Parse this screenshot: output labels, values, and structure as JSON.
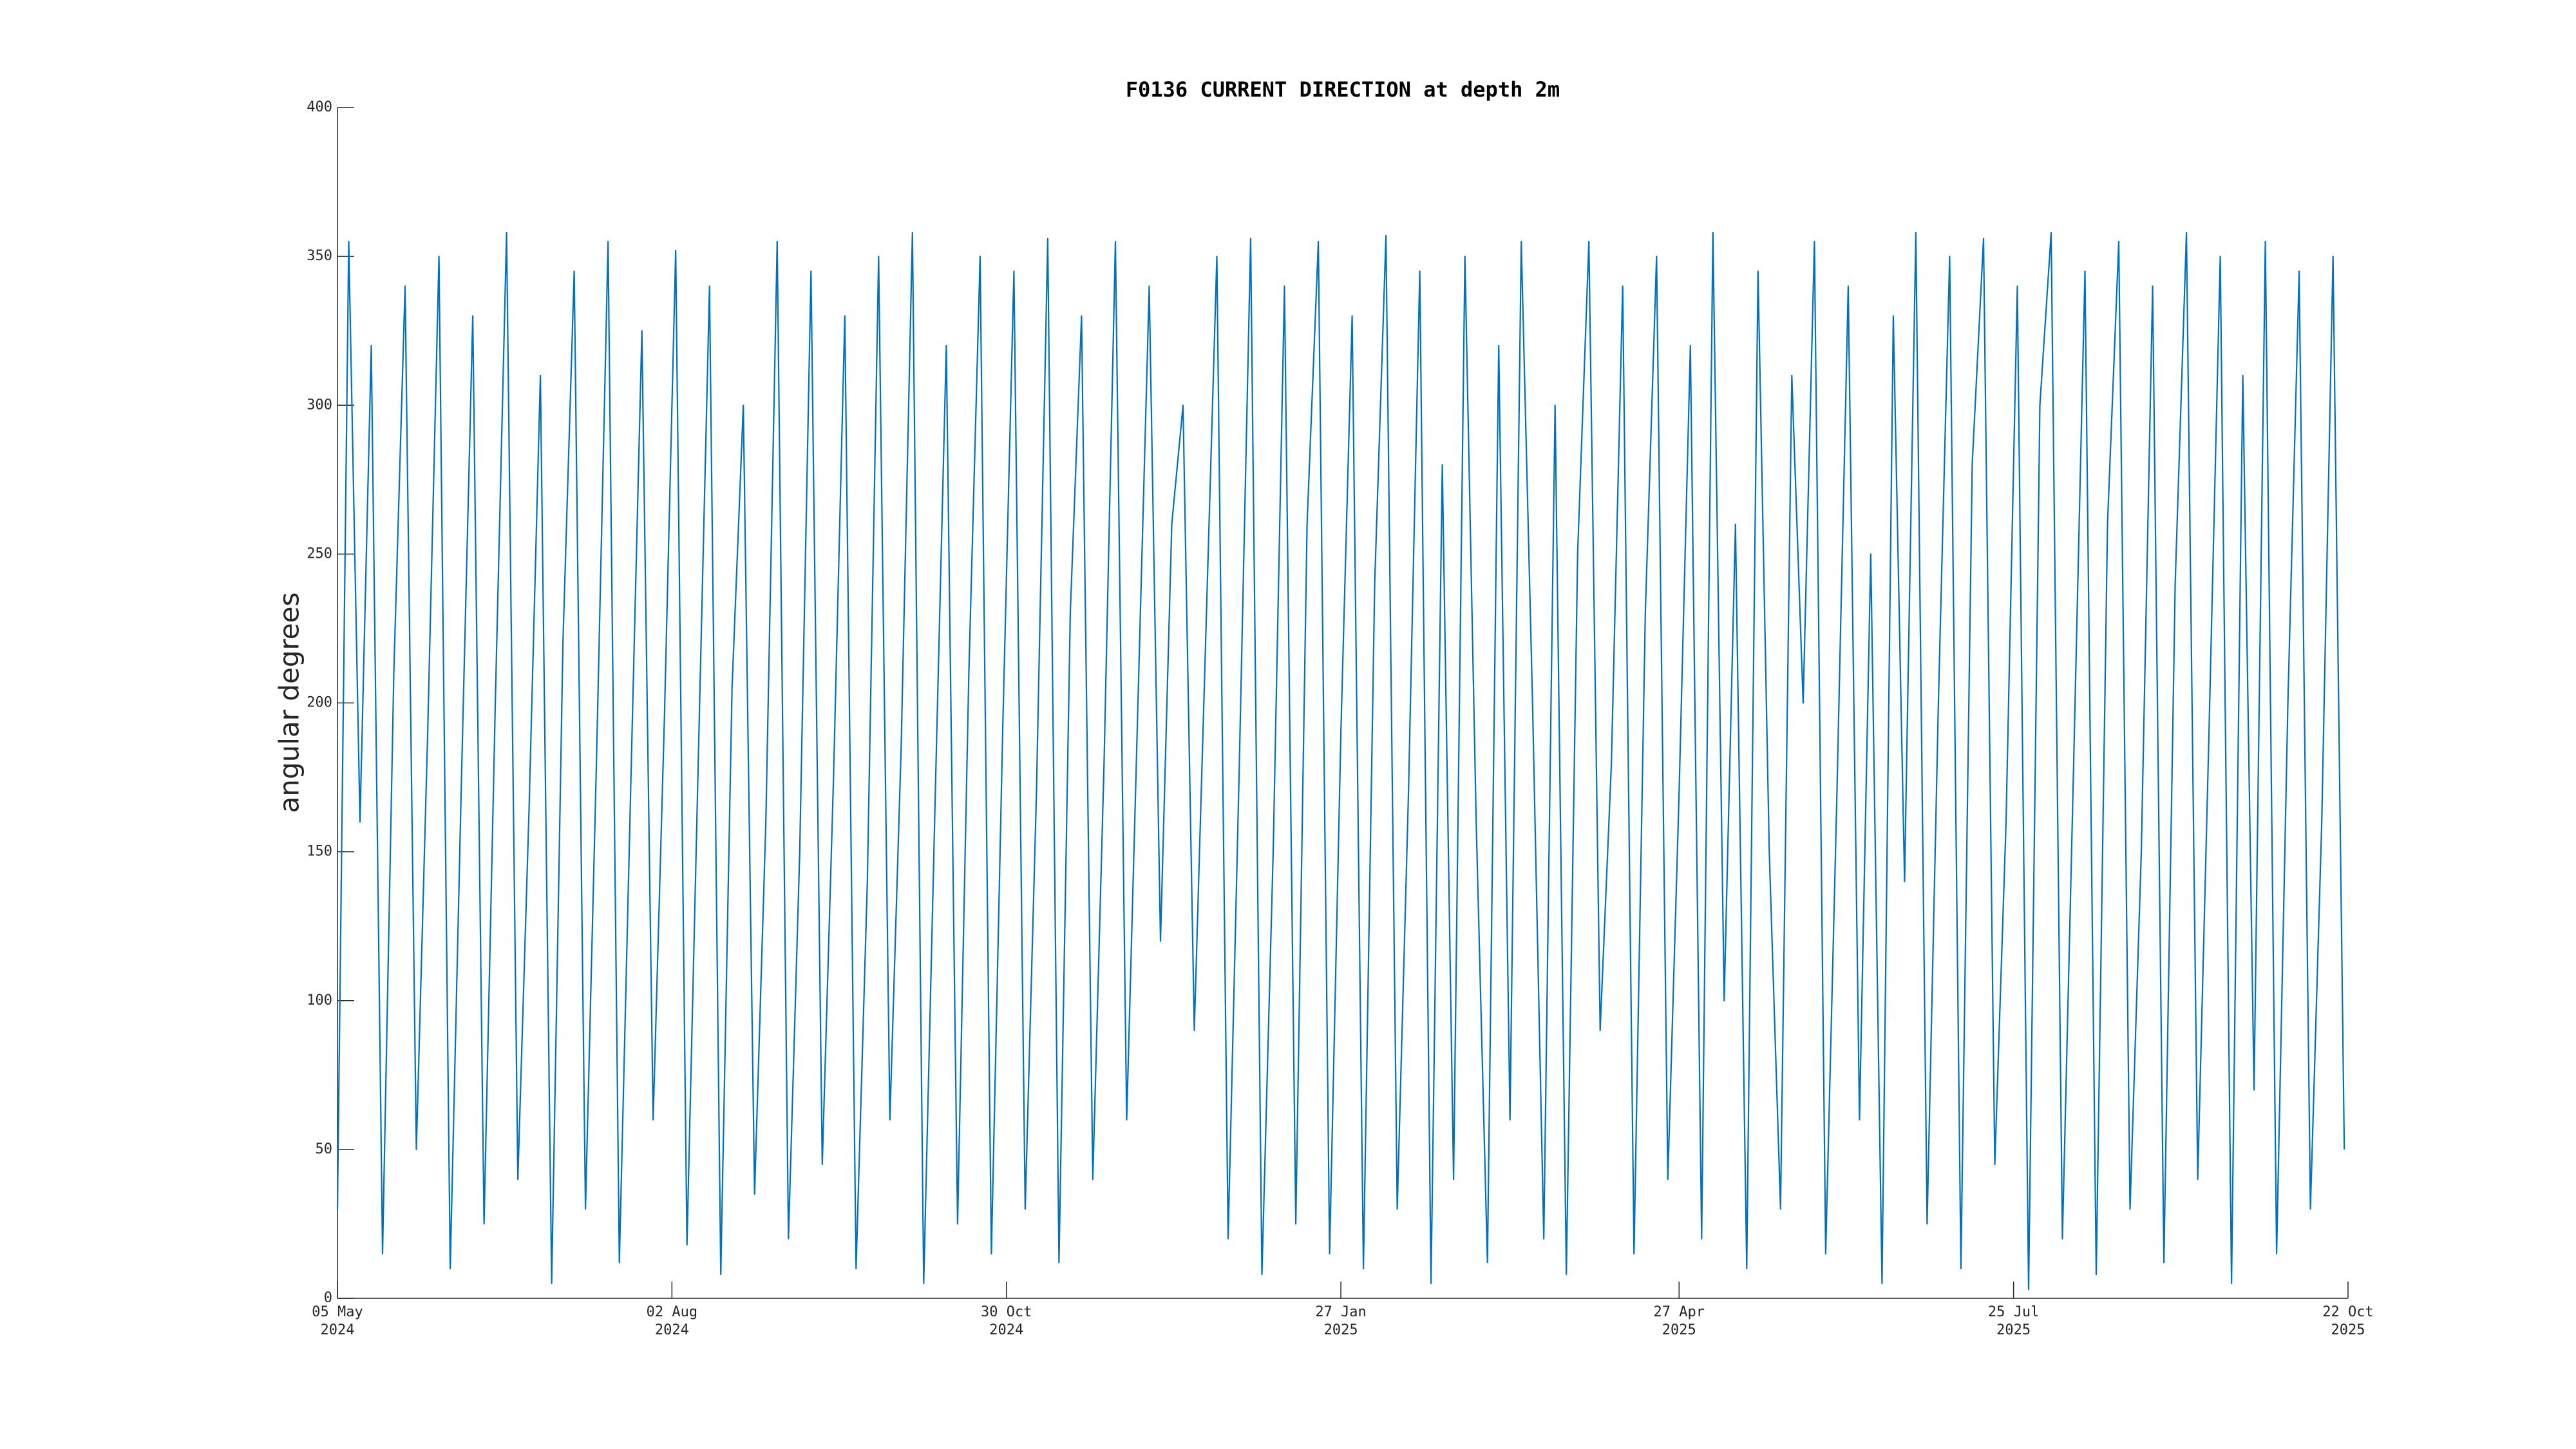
{
  "chart_data": {
    "type": "line",
    "title": "F0136 CURRENT DIRECTION at depth 2m",
    "y_label": "angular degrees",
    "color": "#0072BD",
    "x": [
      "2024-05-05",
      "2024-05-08",
      "2024-05-11",
      "2024-05-14",
      "2024-05-17",
      "2024-05-20",
      "2024-05-23",
      "2024-05-26",
      "2024-05-29",
      "2024-06-01",
      "2024-06-04",
      "2024-06-07",
      "2024-06-10",
      "2024-06-13",
      "2024-06-16",
      "2024-06-19",
      "2024-06-22",
      "2024-06-25",
      "2024-06-28",
      "2024-07-01",
      "2024-07-04",
      "2024-07-07",
      "2024-07-10",
      "2024-07-13",
      "2024-07-16",
      "2024-07-19",
      "2024-07-22",
      "2024-07-25",
      "2024-07-28",
      "2024-07-31",
      "2024-08-03",
      "2024-08-06",
      "2024-08-09",
      "2024-08-12",
      "2024-08-15",
      "2024-08-18",
      "2024-08-21",
      "2024-08-24",
      "2024-08-27",
      "2024-08-30",
      "2024-09-02",
      "2024-09-05",
      "2024-09-08",
      "2024-09-11",
      "2024-09-14",
      "2024-09-17",
      "2024-09-20",
      "2024-09-23",
      "2024-09-26",
      "2024-09-29",
      "2024-10-02",
      "2024-10-05",
      "2024-10-08",
      "2024-10-11",
      "2024-10-14",
      "2024-10-17",
      "2024-10-20",
      "2024-10-23",
      "2024-10-26",
      "2024-10-29",
      "2024-11-01",
      "2024-11-04",
      "2024-11-07",
      "2024-11-10",
      "2024-11-13",
      "2024-11-16",
      "2024-11-19",
      "2024-11-22",
      "2024-11-25",
      "2024-11-28",
      "2024-12-01",
      "2024-12-04",
      "2024-12-07",
      "2024-12-10",
      "2024-12-13",
      "2024-12-16",
      "2024-12-19",
      "2024-12-22",
      "2024-12-25",
      "2024-12-28",
      "2024-12-31",
      "2025-01-03",
      "2025-01-06",
      "2025-01-09",
      "2025-01-12",
      "2025-01-15",
      "2025-01-18",
      "2025-01-21",
      "2025-01-24",
      "2025-01-27",
      "2025-01-30",
      "2025-02-02",
      "2025-02-05",
      "2025-02-08",
      "2025-02-11",
      "2025-02-14",
      "2025-02-17",
      "2025-02-20",
      "2025-02-23",
      "2025-02-26",
      "2025-03-01",
      "2025-03-04",
      "2025-03-07",
      "2025-03-10",
      "2025-03-13",
      "2025-03-16",
      "2025-03-19",
      "2025-03-22",
      "2025-03-25",
      "2025-03-28",
      "2025-03-31",
      "2025-04-03",
      "2025-04-06",
      "2025-04-09",
      "2025-04-12",
      "2025-04-15",
      "2025-04-18",
      "2025-04-21",
      "2025-04-24",
      "2025-04-27",
      "2025-04-30",
      "2025-05-03",
      "2025-05-06",
      "2025-05-09",
      "2025-05-12",
      "2025-05-15",
      "2025-05-18",
      "2025-05-21",
      "2025-05-24",
      "2025-05-27",
      "2025-05-30",
      "2025-06-02",
      "2025-06-05",
      "2025-06-08",
      "2025-06-11",
      "2025-06-14",
      "2025-06-17",
      "2025-06-20",
      "2025-06-23",
      "2025-06-26",
      "2025-06-29",
      "2025-07-02",
      "2025-07-05",
      "2025-07-08",
      "2025-07-11",
      "2025-07-14",
      "2025-07-17",
      "2025-07-20",
      "2025-07-23",
      "2025-07-26",
      "2025-07-29",
      "2025-08-01",
      "2025-08-04",
      "2025-08-07",
      "2025-08-10",
      "2025-08-13",
      "2025-08-16",
      "2025-08-19",
      "2025-08-22",
      "2025-08-25",
      "2025-08-28",
      "2025-08-31",
      "2025-09-03",
      "2025-09-06",
      "2025-09-09",
      "2025-09-12",
      "2025-09-15",
      "2025-09-18",
      "2025-09-21",
      "2025-09-24",
      "2025-09-27",
      "2025-09-30",
      "2025-10-03",
      "2025-10-06",
      "2025-10-09",
      "2025-10-12",
      "2025-10-15",
      "2025-10-18",
      "2025-10-21"
    ],
    "values": [
      30,
      355,
      160,
      320,
      15,
      210,
      340,
      50,
      190,
      350,
      10,
      175,
      330,
      25,
      200,
      358,
      40,
      165,
      310,
      5,
      220,
      345,
      30,
      185,
      355,
      12,
      170,
      325,
      60,
      195,
      352,
      18,
      180,
      340,
      8,
      205,
      300,
      35,
      160,
      355,
      20,
      150,
      345,
      45,
      175,
      330,
      10,
      140,
      350,
      60,
      185,
      358,
      5,
      165,
      320,
      25,
      210,
      350,
      15,
      190,
      345,
      30,
      170,
      356,
      12,
      230,
      330,
      40,
      180,
      355,
      60,
      200,
      340,
      120,
      260,
      300,
      90,
      220,
      350,
      20,
      180,
      356,
      8,
      150,
      340,
      25,
      260,
      355,
      15,
      190,
      330,
      10,
      240,
      357,
      30,
      170,
      345,
      5,
      280,
      40,
      350,
      160,
      12,
      320,
      60,
      355,
      200,
      20,
      300,
      8,
      250,
      355,
      90,
      180,
      340,
      15,
      230,
      350,
      40,
      170,
      320,
      20,
      358,
      100,
      260,
      10,
      345,
      150,
      30,
      310,
      200,
      355,
      15,
      170,
      340,
      60,
      250,
      5,
      330,
      140,
      358,
      25,
      200,
      350,
      10,
      280,
      356,
      45,
      160,
      340,
      3,
      300,
      358,
      20,
      180,
      345,
      8,
      260,
      355,
      30,
      150,
      340,
      12,
      240,
      358,
      40,
      190,
      350,
      5,
      310,
      70,
      355,
      15,
      200,
      345,
      30,
      160,
      350,
      50
    ],
    "xlim": [
      "2024-05-05",
      "2025-10-22"
    ],
    "xticks": [
      {
        "value": "2024-05-05",
        "label": "05 May 2024"
      },
      {
        "value": "2024-08-02",
        "label": "02 Aug 2024"
      },
      {
        "value": "2024-10-30",
        "label": "30 Oct 2024"
      },
      {
        "value": "2025-01-27",
        "label": "27 Jan 2025"
      },
      {
        "value": "2025-04-27",
        "label": "27 Apr 2025"
      },
      {
        "value": "2025-07-25",
        "label": "25 Jul 2025"
      },
      {
        "value": "2025-10-22",
        "label": "22 Oct 2025"
      }
    ],
    "ylim": [
      0,
      400
    ],
    "yticks": [
      0,
      50,
      100,
      150,
      200,
      250,
      300,
      350,
      400
    ],
    "grid": false
  }
}
